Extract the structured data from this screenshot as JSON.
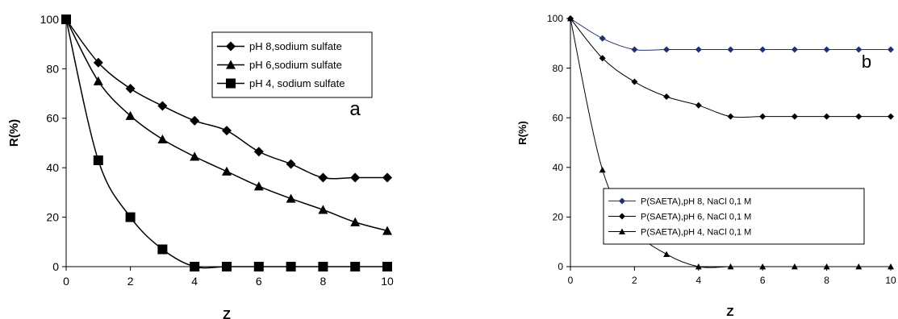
{
  "chart_data": [
    {
      "type": "line",
      "panel_label": "a",
      "xlabel": "Z",
      "ylabel": "R(%)",
      "xlim": [
        0,
        10
      ],
      "ylim": [
        0,
        100
      ],
      "xticks": [
        "0",
        "2",
        "4",
        "6",
        "8",
        "10"
      ],
      "yticks": [
        "0",
        "20",
        "40",
        "60",
        "80",
        "100"
      ],
      "grid": false,
      "legend": "top-right",
      "x": [
        0,
        1,
        2,
        3,
        4,
        5,
        6,
        7,
        8,
        9,
        10
      ],
      "series": [
        {
          "name": "pH 8,sodium sulfate",
          "marker": "diamond",
          "color": "#000000",
          "values": [
            100,
            82.5,
            72,
            65,
            59,
            55,
            46.5,
            41.5,
            36,
            36,
            36
          ]
        },
        {
          "name": "pH 6,sodium sulfate",
          "marker": "triangle",
          "color": "#000000",
          "values": [
            100,
            75,
            61,
            51.5,
            44.5,
            38.5,
            32.5,
            27.5,
            23,
            18,
            14.5
          ]
        },
        {
          "name": "pH 4, sodium sulfate",
          "marker": "square",
          "color": "#000000",
          "values": [
            100,
            43,
            20,
            7,
            0,
            0,
            0,
            0,
            0,
            0,
            0
          ]
        }
      ]
    },
    {
      "type": "line",
      "panel_label": "b",
      "xlabel": "Z",
      "ylabel": "R(%)",
      "xlim": [
        0,
        10
      ],
      "ylim": [
        0,
        100
      ],
      "xticks": [
        "0",
        "2",
        "4",
        "6",
        "8",
        "10"
      ],
      "yticks": [
        "0",
        "20",
        "40",
        "60",
        "80",
        "100"
      ],
      "grid": false,
      "legend": "center-right",
      "x": [
        0,
        1,
        2,
        3,
        4,
        5,
        6,
        7,
        8,
        9,
        10
      ],
      "series": [
        {
          "name": "P(SAETA),pH 8,  NaCl 0,1 M",
          "marker": "diamond",
          "color": "#1f2f7a",
          "values": [
            100,
            92,
            87.5,
            87.5,
            87.5,
            87.5,
            87.5,
            87.5,
            87.5,
            87.5,
            87.5
          ]
        },
        {
          "name": "P(SAETA),pH 6, NaCl 0,1 M",
          "marker": "diamond",
          "color": "#000000",
          "values": [
            100,
            84,
            74.5,
            68.5,
            65,
            60.5,
            60.5,
            60.5,
            60.5,
            60.5,
            60.5
          ]
        },
        {
          "name": "P(SAETA),pH 4, NaCl 0,1 M",
          "marker": "triangle",
          "color": "#000000",
          "values": [
            100,
            39,
            15,
            5,
            0,
            0,
            0,
            0,
            0,
            0,
            0
          ]
        }
      ]
    }
  ]
}
